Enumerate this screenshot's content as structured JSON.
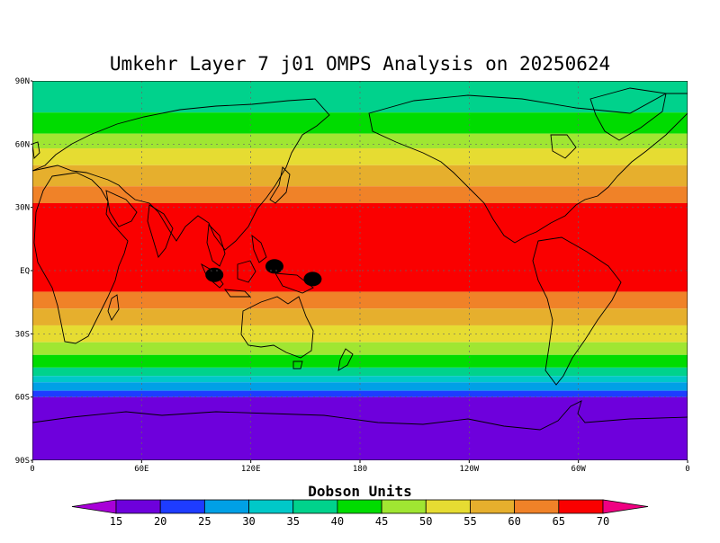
{
  "title": "Umkehr Layer 7 j01 OMPS Analysis on 20250624",
  "map": {
    "lat_labels": [
      "90N",
      "60N",
      "30N",
      "EQ",
      "30S",
      "60S",
      "90S"
    ],
    "lon_labels": [
      "0",
      "60E",
      "120E",
      "180",
      "120W",
      "60W",
      "0"
    ],
    "lon_range": [
      0,
      360
    ],
    "lat_range": [
      -90,
      90
    ],
    "gridlines": true,
    "coastlines": true,
    "field_bands_by_latitude": [
      {
        "lat_min": 75,
        "lat_max": 90,
        "value": 35
      },
      {
        "lat_min": 65,
        "lat_max": 75,
        "value": 40
      },
      {
        "lat_min": 58,
        "lat_max": 65,
        "value": 45
      },
      {
        "lat_min": 50,
        "lat_max": 58,
        "value": 50
      },
      {
        "lat_min": 40,
        "lat_max": 50,
        "value": 55
      },
      {
        "lat_min": 32,
        "lat_max": 40,
        "value": 60
      },
      {
        "lat_min": -10,
        "lat_max": 32,
        "value": 65
      },
      {
        "lat_min": -18,
        "lat_max": -10,
        "value": 60
      },
      {
        "lat_min": -26,
        "lat_max": -18,
        "value": 55
      },
      {
        "lat_min": -34,
        "lat_max": -26,
        "value": 50
      },
      {
        "lat_min": -40,
        "lat_max": -34,
        "value": 45
      },
      {
        "lat_min": -46,
        "lat_max": -40,
        "value": 40
      },
      {
        "lat_min": -50,
        "lat_max": -46,
        "value": 35
      },
      {
        "lat_min": -53,
        "lat_max": -50,
        "value": 30
      },
      {
        "lat_min": -57,
        "lat_max": -53,
        "value": 25
      },
      {
        "lat_min": -60,
        "lat_max": -57,
        "value": 20
      },
      {
        "lat_min": -90,
        "lat_max": -60,
        "value": 15
      }
    ],
    "maxima_regions": [
      {
        "lon": 133,
        "lat": 2,
        "value": 70
      },
      {
        "lon": 100,
        "lat": -2,
        "value": 70
      },
      {
        "lon": 154,
        "lat": -4,
        "value": 70
      }
    ]
  },
  "colorbar": {
    "title": "Dobson Units",
    "levels": [
      "15",
      "20",
      "25",
      "30",
      "35",
      "40",
      "45",
      "50",
      "55",
      "60",
      "65",
      "70"
    ],
    "colors": {
      "below_15": "#a800d8",
      "15": "#6e00dc",
      "20": "#1e3cff",
      "25": "#00a0e6",
      "30": "#00c8c8",
      "35": "#00d28c",
      "40": "#00dc00",
      "45": "#a0e632",
      "50": "#e6dc32",
      "55": "#e6af2d",
      "60": "#f08228",
      "65": "#fa0000",
      "above_70": "#f00082"
    }
  }
}
